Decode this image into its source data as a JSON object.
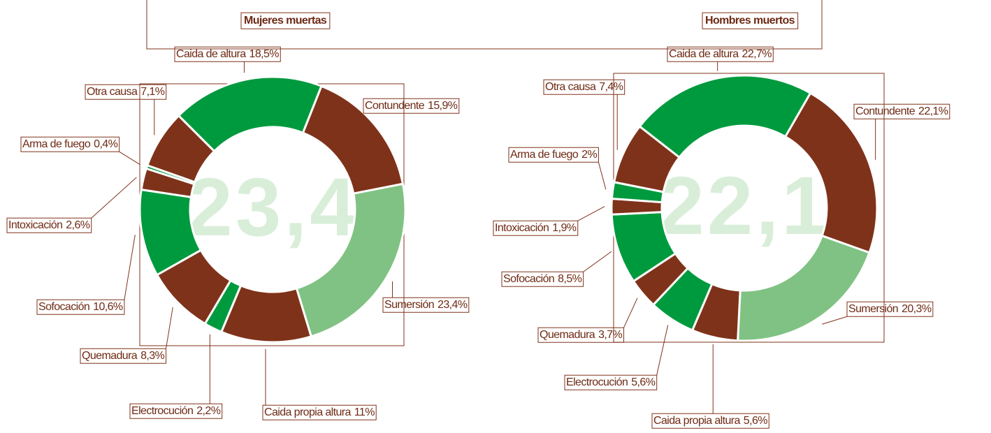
{
  "chart_data": [
    {
      "type": "pie",
      "title": "Mujeres muertas",
      "center_label": "23,4",
      "categories": [
        "Caida de altura",
        "Contundente",
        "Sumersión",
        "Caida propia altura",
        "Electrocución",
        "Quemadura",
        "Sofocación",
        "Intoxicación",
        "Arma de fuego",
        "Otra causa"
      ],
      "values": [
        18.5,
        15.9,
        23.4,
        11,
        2.2,
        8.3,
        10.6,
        2.6,
        0.4,
        7.1
      ],
      "value_labels": [
        "18,5%",
        "15,9%",
        "23,4%",
        "11%",
        "2,2%",
        "8,3%",
        "10,6%",
        "2,6%",
        "0,4%",
        "7,1%"
      ],
      "colors": [
        "#009a3e",
        "#7f321a",
        "#80c283",
        "#7f321a",
        "#009a3e",
        "#7f321a",
        "#009a3e",
        "#7f321a",
        "#009a3e",
        "#7f321a"
      ]
    },
    {
      "type": "pie",
      "title": "Hombres muertos",
      "center_label": "22,1",
      "categories": [
        "Caida de altura",
        "Contundente",
        "Sumersión",
        "Caida propia altura",
        "Electrocución",
        "Quemadura",
        "Sofocación",
        "Intoxicación",
        "Arma de fuego",
        "Otra causa"
      ],
      "values": [
        22.7,
        22.1,
        20.3,
        5.6,
        5.6,
        3.7,
        8.5,
        1.9,
        2,
        7.4
      ],
      "value_labels": [
        "22,7%",
        "22,1%",
        "20,3%",
        "5,6%",
        "5,6%",
        "3,7%",
        "8,5%",
        "1,9%",
        "2%",
        "7,4%"
      ],
      "colors": [
        "#009a3e",
        "#7f321a",
        "#80c283",
        "#7f321a",
        "#009a3e",
        "#7f321a",
        "#009a3e",
        "#7f321a",
        "#009a3e",
        "#7f321a"
      ]
    }
  ]
}
